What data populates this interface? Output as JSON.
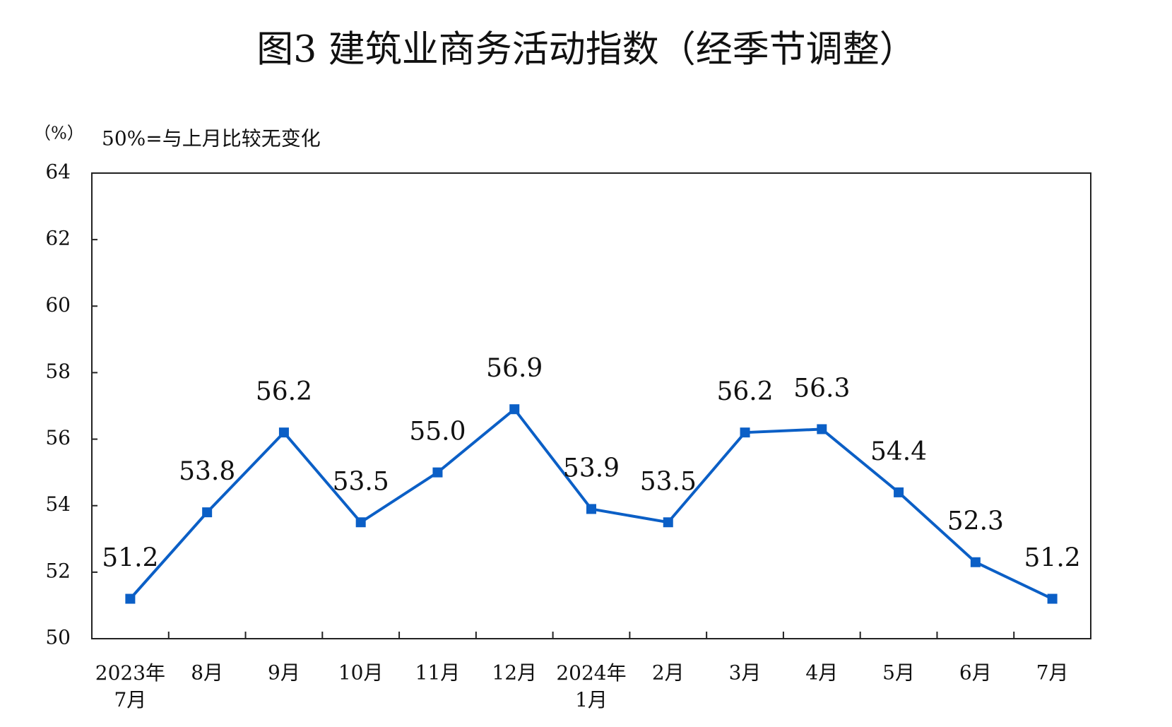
{
  "chart_data": {
    "type": "line",
    "title": "图3  建筑业商务活动指数（经季节调整）",
    "y_unit": "（%）",
    "annotation": "50%=与上月比较无变化",
    "categories": [
      "2023年\n7月",
      "8月",
      "9月",
      "10月",
      "11月",
      "12月",
      "2024年\n1月",
      "2月",
      "3月",
      "4月",
      "5月",
      "6月",
      "7月"
    ],
    "series": [
      {
        "color": "#0b5fc6",
        "values": [
          51.2,
          53.8,
          56.2,
          53.5,
          55.0,
          56.9,
          53.9,
          53.5,
          56.2,
          56.3,
          54.4,
          52.3,
          51.2
        ],
        "value_labels": [
          "51.2",
          "53.8",
          "56.2",
          "53.5",
          "55.0",
          "56.9",
          "53.9",
          "53.5",
          "56.2",
          "56.3",
          "54.4",
          "52.3",
          "51.2"
        ]
      }
    ],
    "ylim": [
      50,
      64
    ],
    "yticks": [
      50,
      52,
      54,
      56,
      58,
      60,
      62,
      64
    ],
    "grid": false
  }
}
